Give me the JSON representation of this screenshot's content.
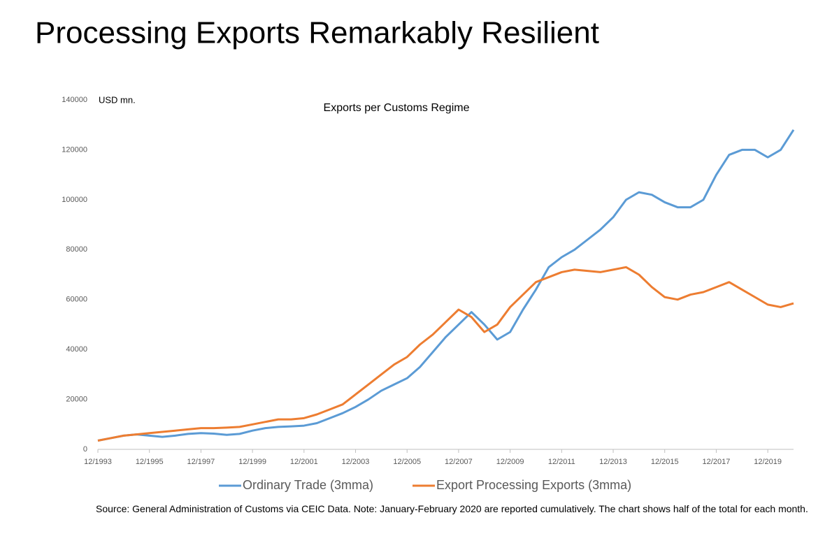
{
  "title": "Processing Exports Remarkably Resilient",
  "source": "Source: General Administration of Customs via CEIC Data.  Note: January-February 2020 are reported cumulatively.  The chart shows half of the total for each month.",
  "chart_data": {
    "type": "line",
    "title": "Exports per Customs Regime",
    "y_label": "USD mn.",
    "x": [
      "12/1993",
      "06/1994",
      "12/1994",
      "06/1995",
      "12/1995",
      "06/1996",
      "12/1996",
      "06/1997",
      "12/1997",
      "06/1998",
      "12/1998",
      "06/1999",
      "12/1999",
      "06/2000",
      "12/2000",
      "06/2001",
      "12/2001",
      "06/2002",
      "12/2002",
      "06/2003",
      "12/2003",
      "06/2004",
      "12/2004",
      "06/2005",
      "12/2005",
      "06/2006",
      "12/2006",
      "06/2007",
      "12/2007",
      "06/2008",
      "12/2008",
      "06/2009",
      "12/2009",
      "06/2010",
      "12/2010",
      "06/2011",
      "12/2011",
      "06/2012",
      "12/2012",
      "06/2013",
      "12/2013",
      "06/2014",
      "12/2014",
      "06/2015",
      "12/2015",
      "06/2016",
      "12/2016",
      "06/2017",
      "12/2017",
      "06/2018",
      "12/2018",
      "06/2019",
      "12/2019",
      "06/2020",
      "12/2020"
    ],
    "series": [
      {
        "name": "Ordinary Trade (3mma)",
        "color": "#5b9bd5",
        "values": [
          3500,
          4500,
          5500,
          6000,
          5500,
          5000,
          5500,
          6200,
          6500,
          6300,
          5800,
          6200,
          7500,
          8500,
          9000,
          9200,
          9500,
          10500,
          12500,
          14500,
          17000,
          20000,
          23500,
          26000,
          28500,
          33000,
          39000,
          45000,
          50000,
          55000,
          50000,
          44000,
          47000,
          56000,
          64000,
          73000,
          77000,
          80000,
          84000,
          88000,
          93000,
          100000,
          103000,
          102000,
          99000,
          97000,
          97000,
          100000,
          110000,
          118000,
          120000,
          120000,
          117000,
          120000,
          128000
        ]
      },
      {
        "name": "Export Processing Exports (3mma)",
        "color": "#ed7d31",
        "values": [
          3500,
          4500,
          5500,
          6000,
          6500,
          7000,
          7500,
          8000,
          8500,
          8500,
          8700,
          9000,
          10000,
          11000,
          12000,
          12000,
          12500,
          14000,
          16000,
          18000,
          22000,
          26000,
          30000,
          34000,
          37000,
          42000,
          46000,
          51000,
          56000,
          53000,
          47000,
          50000,
          57000,
          62000,
          67000,
          69000,
          71000,
          72000,
          71500,
          71000,
          72000,
          73000,
          70000,
          65000,
          61000,
          60000,
          62000,
          63000,
          65000,
          67000,
          64000,
          61000,
          58000,
          57000,
          58500
        ]
      }
    ],
    "xlim": [
      "12/1993",
      "12/2020"
    ],
    "xticks": [
      "12/1993",
      "12/1995",
      "12/1997",
      "12/1999",
      "12/2001",
      "12/2003",
      "12/2005",
      "12/2007",
      "12/2009",
      "12/2011",
      "12/2013",
      "12/2015",
      "12/2017",
      "12/2019"
    ],
    "ylim": [
      0,
      140000
    ],
    "yticks": [
      0,
      20000,
      40000,
      60000,
      80000,
      100000,
      120000,
      140000
    ],
    "grid": false,
    "legend": "bottom"
  }
}
